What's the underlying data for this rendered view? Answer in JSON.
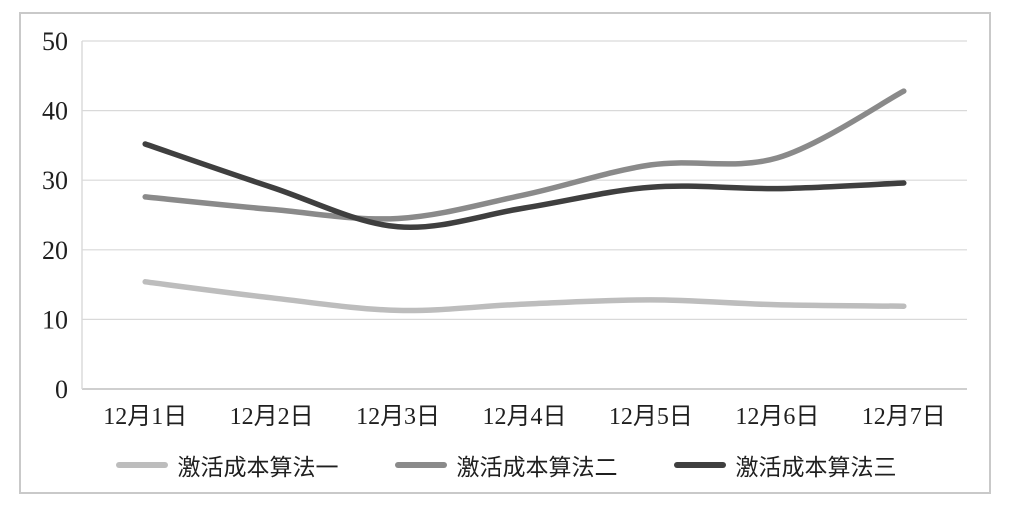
{
  "chart_data": {
    "type": "line",
    "title": "",
    "categories": [
      "12月1日",
      "12月2日",
      "12月3日",
      "12月4日",
      "12月5日",
      "12月6日",
      "12月7日"
    ],
    "series": [
      {
        "name": "激活成本算法一",
        "color": "#bdbdbd",
        "values": [
          15.4,
          13.1,
          11.3,
          12.2,
          12.8,
          12.1,
          11.9
        ]
      },
      {
        "name": "激活成本算法二",
        "color": "#8a8a8a",
        "values": [
          27.6,
          25.8,
          24.5,
          27.9,
          32.2,
          33.2,
          42.8
        ]
      },
      {
        "name": "激活成本算法三",
        "color": "#3f3f3f",
        "values": [
          35.2,
          29.0,
          23.3,
          26.0,
          29.0,
          28.8,
          29.6
        ]
      }
    ],
    "yticks": [
      0,
      10,
      20,
      30,
      40,
      50
    ],
    "ylim": [
      0,
      50
    ],
    "xlabel": "",
    "ylabel": "",
    "grid": "horizontal",
    "legend_position": "bottom",
    "smooth": true
  },
  "colors": {
    "background": "#ffffff",
    "border": "#c9c9c9",
    "gridline": "#d9d9d9",
    "axis_line": "#bfbfbf",
    "text": "#1f1f1f"
  }
}
